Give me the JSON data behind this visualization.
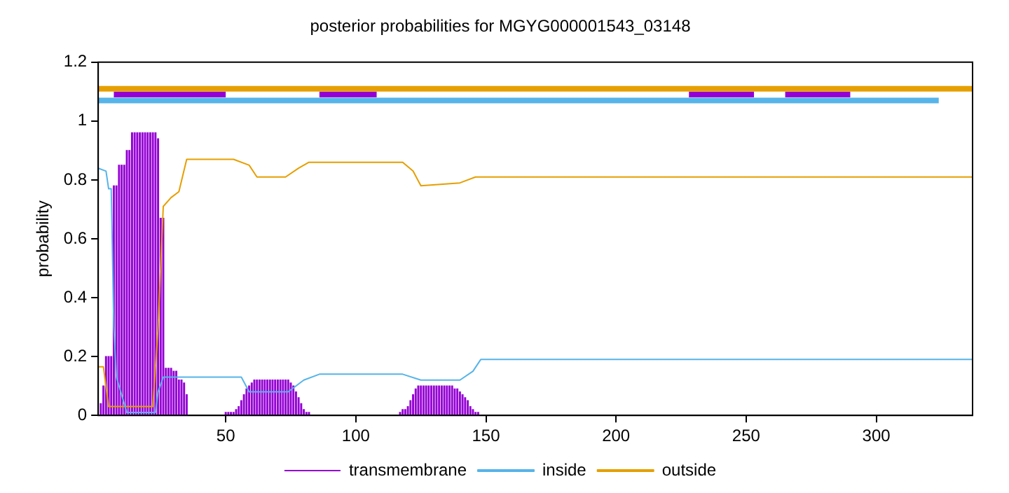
{
  "chart_data": {
    "type": "line",
    "title": "posterior probabilities for MGYG000001543_03148",
    "ylabel": "probability",
    "xlim": [
      1,
      337
    ],
    "xticks": [
      50,
      100,
      150,
      200,
      250,
      300
    ],
    "ylim": [
      0,
      1.2
    ],
    "yticks": [
      0,
      0.2,
      0.4,
      0.6,
      0.8,
      1,
      1.2
    ],
    "grid": false,
    "legend": "bottom",
    "series": [
      {
        "type": "bar",
        "name": "transmembrane",
        "color": "#9400d3",
        "x": [
          2,
          3,
          4,
          5,
          6,
          7,
          8,
          9,
          10,
          11,
          12,
          13,
          14,
          15,
          16,
          17,
          18,
          19,
          20,
          21,
          22,
          23,
          24,
          25,
          26,
          27,
          28,
          29,
          30,
          31,
          32,
          33,
          34,
          35,
          50,
          51,
          52,
          53,
          54,
          55,
          56,
          57,
          58,
          59,
          60,
          61,
          62,
          63,
          64,
          65,
          66,
          67,
          68,
          69,
          70,
          71,
          72,
          73,
          74,
          75,
          76,
          77,
          78,
          79,
          80,
          81,
          82,
          117,
          118,
          119,
          120,
          121,
          122,
          123,
          124,
          125,
          126,
          127,
          128,
          129,
          130,
          131,
          132,
          133,
          134,
          135,
          136,
          137,
          138,
          139,
          140,
          141,
          142,
          143,
          144,
          145,
          146,
          147
        ],
        "values": [
          0.04,
          0.1,
          0.2,
          0.2,
          0.2,
          0.78,
          0.78,
          0.85,
          0.85,
          0.85,
          0.9,
          0.9,
          0.96,
          0.96,
          0.96,
          0.96,
          0.96,
          0.96,
          0.96,
          0.96,
          0.96,
          0.96,
          0.94,
          0.67,
          0.67,
          0.16,
          0.16,
          0.16,
          0.15,
          0.15,
          0.12,
          0.12,
          0.11,
          0.07,
          0.01,
          0.01,
          0.01,
          0.01,
          0.02,
          0.03,
          0.05,
          0.07,
          0.09,
          0.1,
          0.11,
          0.12,
          0.12,
          0.12,
          0.12,
          0.12,
          0.12,
          0.12,
          0.12,
          0.12,
          0.12,
          0.12,
          0.12,
          0.12,
          0.12,
          0.11,
          0.1,
          0.08,
          0.06,
          0.04,
          0.02,
          0.01,
          0.01,
          0.01,
          0.02,
          0.02,
          0.03,
          0.05,
          0.07,
          0.09,
          0.1,
          0.1,
          0.1,
          0.1,
          0.1,
          0.1,
          0.1,
          0.1,
          0.1,
          0.1,
          0.1,
          0.1,
          0.1,
          0.1,
          0.09,
          0.09,
          0.08,
          0.07,
          0.06,
          0.05,
          0.03,
          0.02,
          0.01,
          0.01
        ]
      },
      {
        "name": "inside",
        "color": "#56b4e9",
        "x": [
          1,
          4,
          5,
          6,
          7,
          8,
          9,
          12,
          23,
          24,
          26,
          56,
          59,
          74,
          80,
          86,
          118,
          125,
          140,
          145,
          148,
          337
        ],
        "values": [
          0.84,
          0.83,
          0.77,
          0.77,
          0.3,
          0.13,
          0.1,
          0.01,
          0.01,
          0.08,
          0.13,
          0.13,
          0.08,
          0.08,
          0.12,
          0.14,
          0.14,
          0.12,
          0.12,
          0.15,
          0.19,
          0.19
        ]
      },
      {
        "name": "outside",
        "color": "#e69f00",
        "x": [
          1,
          3,
          5,
          22,
          24,
          26,
          29,
          32,
          35,
          53,
          59,
          62,
          73,
          78,
          82,
          118,
          122,
          125,
          140,
          146,
          337
        ],
        "values": [
          0.165,
          0.165,
          0.03,
          0.03,
          0.3,
          0.71,
          0.74,
          0.76,
          0.87,
          0.87,
          0.85,
          0.81,
          0.81,
          0.84,
          0.86,
          0.86,
          0.83,
          0.78,
          0.79,
          0.81,
          0.81
        ]
      },
      {
        "color": "#56b4e9",
        "x": [
          1,
          324
        ],
        "values": [
          1.07,
          1.07
        ]
      },
      {
        "color": "#e69f00",
        "x": [
          1,
          337
        ],
        "values": [
          1.11,
          1.11
        ]
      },
      {
        "color": "#9400d3",
        "x": [
          7,
          50,
          68,
          86,
          108,
          168,
          228,
          253,
          259,
          265,
          290
        ],
        "values": [
          1.09,
          1.09,
          null,
          1.09,
          1.09,
          null,
          1.09,
          1.09,
          null,
          1.09,
          1.09
        ]
      }
    ]
  }
}
